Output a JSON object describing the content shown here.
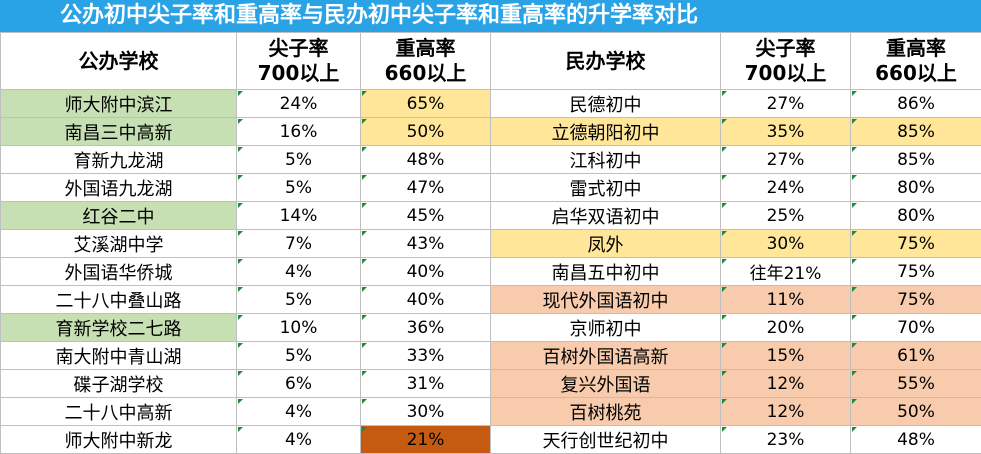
{
  "title": "公办初中尖子率和重高率与民办初中尖子率和重高率的升学率对比",
  "headers": {
    "public_school": "公办学校",
    "top_rate_line1": "尖子率",
    "top_rate_line2": "700以上",
    "key_rate_line1": "重高率",
    "key_rate_line2": "660以上",
    "private_school": "民办学校"
  },
  "colors": {
    "title_bg": "#2aa2e6",
    "green": "#c6e0b4",
    "yellow": "#ffe699",
    "peach": "#f8cbad",
    "dark_orange": "#c55a11"
  },
  "rows": [
    {
      "pub": "师大附中滨江",
      "pub_top": "24%",
      "pub_key": "65%",
      "pri": "民德初中",
      "pri_top": "27%",
      "pri_key": "86%"
    },
    {
      "pub": "南昌三中高新",
      "pub_top": "16%",
      "pub_key": "50%",
      "pri": "立德朝阳初中",
      "pri_top": "35%",
      "pri_key": "85%"
    },
    {
      "pub": "育新九龙湖",
      "pub_top": "5%",
      "pub_key": "48%",
      "pri": "江科初中",
      "pri_top": "27%",
      "pri_key": "85%"
    },
    {
      "pub": "外国语九龙湖",
      "pub_top": "5%",
      "pub_key": "47%",
      "pri": "雷式初中",
      "pri_top": "24%",
      "pri_key": "80%"
    },
    {
      "pub": "红谷二中",
      "pub_top": "14%",
      "pub_key": "45%",
      "pri": "启华双语初中",
      "pri_top": "25%",
      "pri_key": "80%"
    },
    {
      "pub": "艾溪湖中学",
      "pub_top": "7%",
      "pub_key": "43%",
      "pri": "凤外",
      "pri_top": "30%",
      "pri_key": "75%"
    },
    {
      "pub": "外国语华侨城",
      "pub_top": "4%",
      "pub_key": "40%",
      "pri": "南昌五中初中",
      "pri_top": "往年21%",
      "pri_key": "75%"
    },
    {
      "pub": "二十八中叠山路",
      "pub_top": "5%",
      "pub_key": "40%",
      "pri": "现代外国语初中",
      "pri_top": "11%",
      "pri_key": "75%"
    },
    {
      "pub": "育新学校二七路",
      "pub_top": "10%",
      "pub_key": "36%",
      "pri": "京师初中",
      "pri_top": "20%",
      "pri_key": "70%"
    },
    {
      "pub": "南大附中青山湖",
      "pub_top": "5%",
      "pub_key": "33%",
      "pri": "百树外国语高新",
      "pri_top": "15%",
      "pri_key": "61%"
    },
    {
      "pub": "碟子湖学校",
      "pub_top": "6%",
      "pub_key": "31%",
      "pri": "复兴外国语",
      "pri_top": "12%",
      "pri_key": "55%"
    },
    {
      "pub": "二十八中高新",
      "pub_top": "4%",
      "pub_key": "30%",
      "pri": "百树桃苑",
      "pri_top": "12%",
      "pri_key": "50%"
    },
    {
      "pub": "师大附中新龙",
      "pub_top": "4%",
      "pub_key": "21%",
      "pri": "天行创世纪初中",
      "pri_top": "23%",
      "pri_key": "48%"
    }
  ]
}
